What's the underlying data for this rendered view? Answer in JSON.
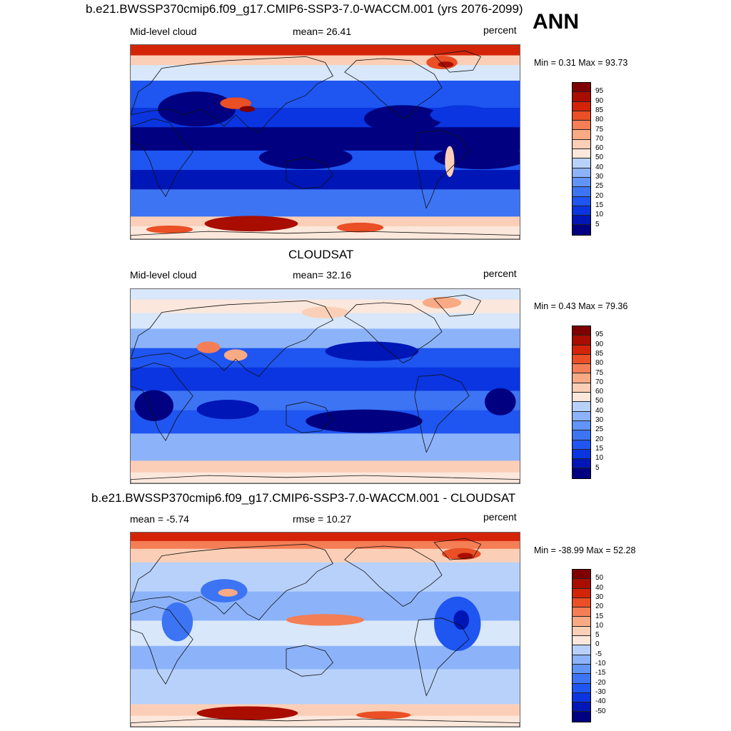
{
  "season": "ANN",
  "panels": [
    {
      "title": "b.e21.BWSSP370cmip6.f09_g17.CMIP6-SSP3-7.0-WACCM.001 (yrs 2076-2099)",
      "left_label": "Mid-level cloud",
      "center_label": "mean=  26.41",
      "units": "percent",
      "minmax": "Min =   0.31 Max =  93.73",
      "colorbar_labels": [
        "95",
        "90",
        "85",
        "80",
        "75",
        "70",
        "60",
        "50",
        "40",
        "30",
        "25",
        "20",
        "15",
        "10",
        "5"
      ],
      "statistics": {
        "mean": 26.41,
        "min": 0.31,
        "max": 93.73
      }
    },
    {
      "title": "CLOUDSAT",
      "left_label": "Mid-level cloud",
      "center_label": "mean=  32.16",
      "units": "percent",
      "minmax": "Min =   0.43 Max =  79.36",
      "colorbar_labels": [
        "95",
        "90",
        "85",
        "80",
        "75",
        "70",
        "60",
        "50",
        "40",
        "30",
        "25",
        "20",
        "15",
        "10",
        "5"
      ],
      "statistics": {
        "mean": 32.16,
        "min": 0.43,
        "max": 79.36
      }
    },
    {
      "title": "b.e21.BWSSP370cmip6.f09_g17.CMIP6-SSP3-7.0-WACCM.001 - CLOUDSAT",
      "left_label": "mean =  -5.74",
      "center_label": "rmse =  10.27",
      "units": "percent",
      "minmax": "Min = -38.99 Max =  52.28",
      "colorbar_labels": [
        "50",
        "40",
        "30",
        "20",
        "15",
        "10",
        "5",
        "0",
        "-5",
        "-10",
        "-15",
        "-20",
        "-30",
        "-40",
        "-50"
      ],
      "statistics": {
        "mean": -5.74,
        "rmse": 10.27,
        "min": -38.99,
        "max": 52.28
      }
    }
  ],
  "colors": {
    "palette": [
      "#000080",
      "#0016b6",
      "#0a35e0",
      "#1f55f0",
      "#3d74f4",
      "#6294f7",
      "#8cb3fa",
      "#b8d1fb",
      "#d8e7fa",
      "#fbe7db",
      "#fbcfb7",
      "#f8aa85",
      "#f47e55",
      "#ea4f25",
      "#d42408",
      "#a80d00",
      "#7f0000"
    ],
    "coastline": "#111111"
  }
}
